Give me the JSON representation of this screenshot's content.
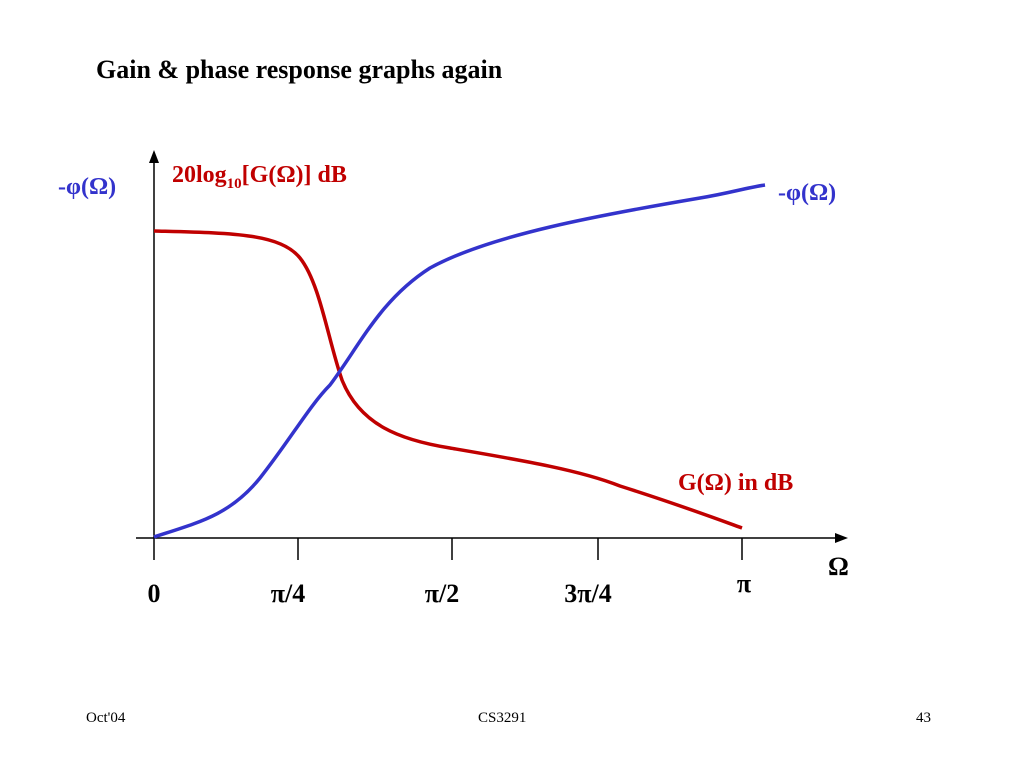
{
  "slide": {
    "title": "Gain & phase response graphs again"
  },
  "graph": {
    "gain_axis_label": {
      "prefix": "20log",
      "subscript": "10",
      "suffix": "[G(Ω)] dB"
    },
    "phase_axis_label": "-φ(Ω)",
    "phase_curve_label": "-φ(Ω)",
    "gain_curve_label": "G(Ω) in dB",
    "x_axis_symbol": "Ω",
    "x_ticks": [
      "0",
      "π/4",
      "π/2",
      "3π/4",
      "π"
    ],
    "colors": {
      "gain": "#c00000",
      "phase": "#3333cc",
      "axis": "#000000"
    }
  },
  "footer": {
    "left": "Oct'04",
    "center": "CS3291",
    "right": "43"
  }
}
